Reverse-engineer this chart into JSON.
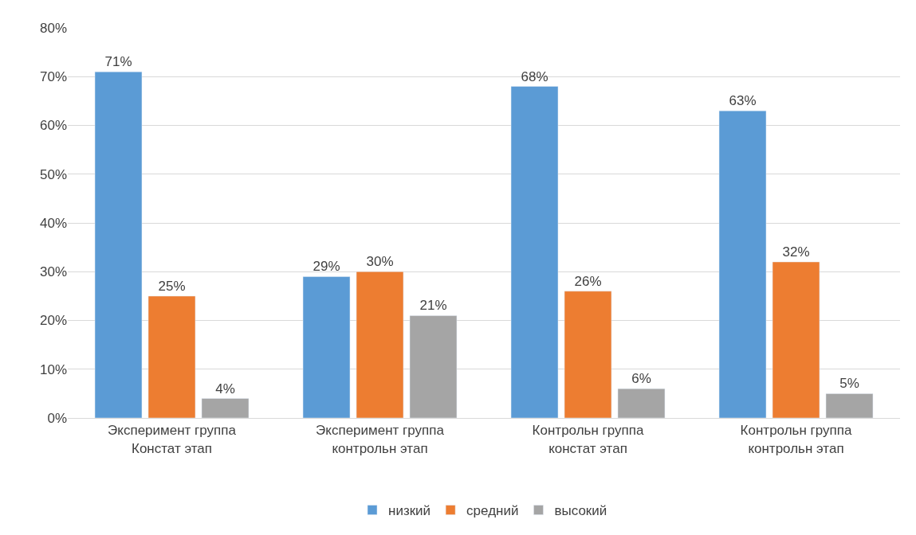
{
  "chart_data": {
    "type": "bar",
    "categories": [
      "Эксперимент группа\nКонстат этап",
      "Эксперимент группа\nконтрольн этап",
      "Контрольн группа\nконстат этап",
      "Контрольн группа\nконтрольн этап"
    ],
    "series": [
      {
        "name": "низкий",
        "color": "#5b9bd5",
        "values": [
          71,
          29,
          68,
          63
        ],
        "value_labels": [
          "71%",
          "29%",
          "68%",
          "63%"
        ]
      },
      {
        "name": "средний",
        "color": "#ed7d31",
        "values": [
          25,
          30,
          26,
          32
        ],
        "value_labels": [
          "25%",
          "30%",
          "26%",
          "32%"
        ]
      },
      {
        "name": "высокий",
        "color": "#a5a5a5",
        "values": [
          4,
          21,
          6,
          5
        ],
        "value_labels": [
          "4%",
          "21%",
          "6%",
          "5%"
        ]
      }
    ],
    "ylim": [
      0,
      80
    ],
    "yticks": [
      {
        "value": 0,
        "label": "0%"
      },
      {
        "value": 10,
        "label": "10%"
      },
      {
        "value": 20,
        "label": "20%"
      },
      {
        "value": 30,
        "label": "30%"
      },
      {
        "value": 40,
        "label": "40%"
      },
      {
        "value": 50,
        "label": "50%"
      },
      {
        "value": 60,
        "label": "60%"
      },
      {
        "value": 70,
        "label": "70%"
      },
      {
        "value": 80,
        "label": "80%"
      }
    ],
    "grid": "y",
    "legend": "bottom"
  }
}
